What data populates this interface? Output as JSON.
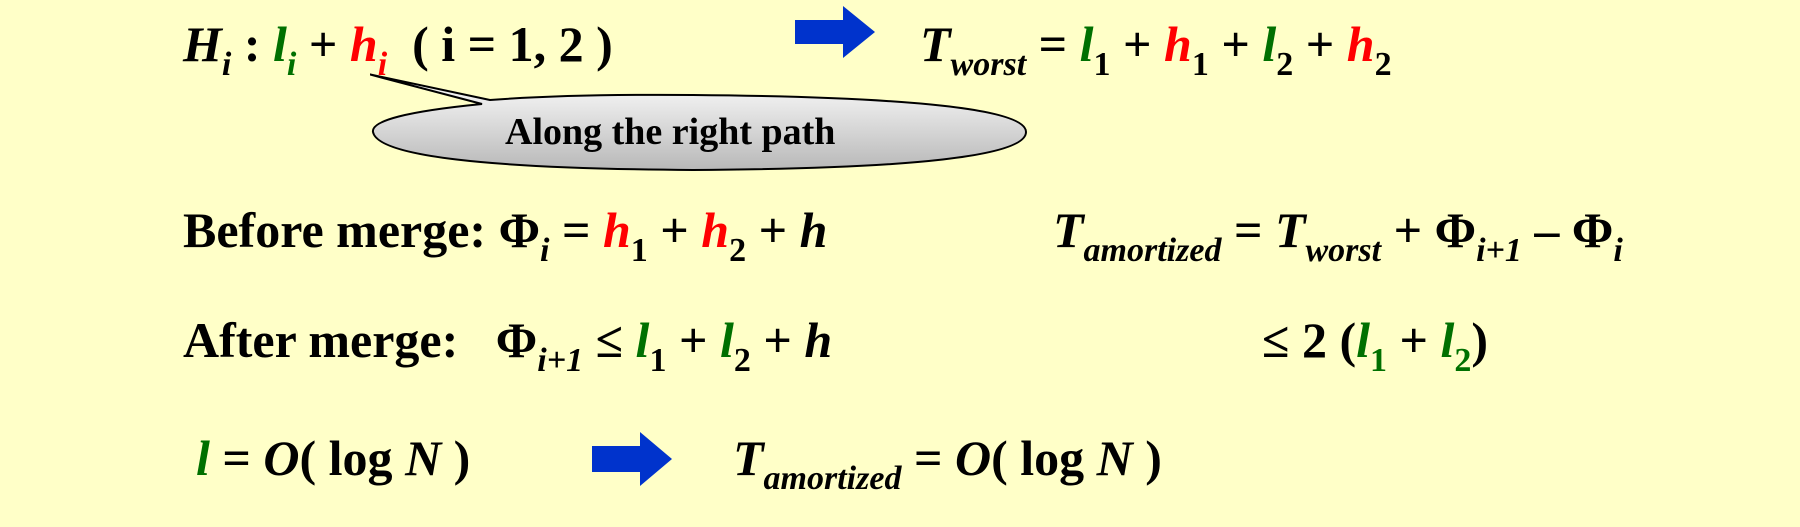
{
  "line1": {
    "H": "H",
    "H_sub": "i",
    "colon": ":",
    "l": "l",
    "l_sub": "i",
    "plus": "+",
    "h": "h",
    "h_sub": "i",
    "range": "( i = 1, 2 )",
    "T": "T",
    "T_sub": "worst",
    "eq": "=",
    "l1": "l",
    "l1_sub": "1",
    "h1": "h",
    "h1_sub": "1",
    "l2": "l",
    "l2_sub": "2",
    "h2": "h",
    "h2_sub": "2"
  },
  "callout": {
    "text": "Along the right path"
  },
  "line2": {
    "label": "Before merge:",
    "phi": "Φ",
    "phi_sub": "i",
    "eq": "=",
    "h1": "h",
    "h1_sub": "1",
    "h2": "h",
    "h2_sub": "2",
    "h": "h",
    "T": "T",
    "T_sub": "amortized",
    "T2": "T",
    "T2_sub": "worst",
    "phi_next": "Φ",
    "phi_next_sub": "i+1",
    "minus": "–",
    "phi_last": "Φ",
    "phi_last_sub": "i"
  },
  "line3": {
    "label": "After merge:",
    "phi": "Φ",
    "phi_sub": "i+1",
    "le": "≤",
    "l1": "l",
    "l1_sub": "1",
    "l2": "l",
    "l2_sub": "2",
    "h": "h",
    "bound_prefix": "≤ 2 (",
    "b_l1": "l",
    "b_l1_sub": "1",
    "b_l2": "l",
    "b_l2_sub": "2",
    "close": ")"
  },
  "line4": {
    "l": "l",
    "eq": "=",
    "O": "O",
    "log_open": "( log",
    "N": "N",
    "close": ")",
    "T": "T",
    "T_sub": "amortized",
    "O2": "O",
    "N2": "N"
  },
  "colors": {
    "green": "#007000",
    "red": "#ff0000",
    "arrow": "#0033cc",
    "background": "#ffffc8"
  }
}
